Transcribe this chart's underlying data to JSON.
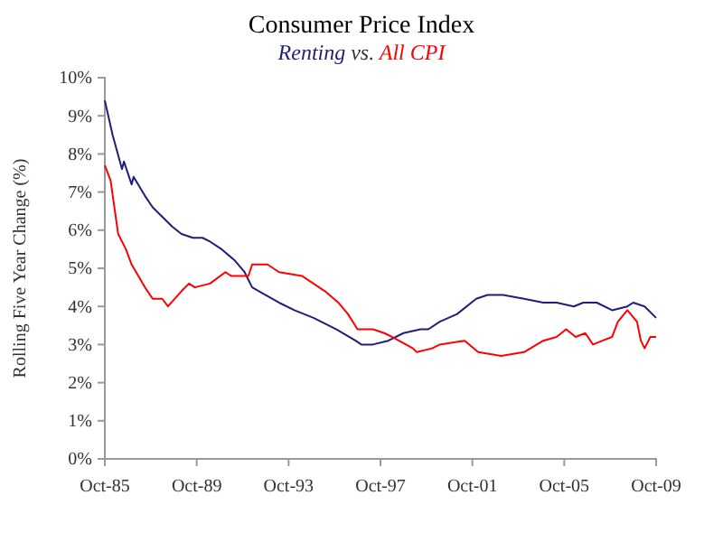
{
  "chart_data": {
    "type": "line",
    "title": "Consumer Price Index",
    "subtitle": "vs.",
    "ylabel": "Rolling Five Year Change (%)",
    "legend": "top",
    "marker": "none",
    "line_style": "solid",
    "grid": false,
    "xlim": [
      "1985-10",
      "2009-10"
    ],
    "xticks": [
      {
        "value": "1985-10",
        "label": "Oct-85"
      },
      {
        "value": "1989-10",
        "label": "Oct-89"
      },
      {
        "value": "1993-10",
        "label": "Oct-93"
      },
      {
        "value": "1997-10",
        "label": "Oct-97"
      },
      {
        "value": "2001-10",
        "label": "Oct-01"
      },
      {
        "value": "2005-10",
        "label": "Oct-05"
      },
      {
        "value": "2009-10",
        "label": "Oct-09"
      }
    ],
    "ylim": [
      0,
      10
    ],
    "yticks": [
      {
        "value": 0,
        "label": "0%"
      },
      {
        "value": 1,
        "label": "1%"
      },
      {
        "value": 2,
        "label": "2%"
      },
      {
        "value": 3,
        "label": "3%"
      },
      {
        "value": 4,
        "label": "4%"
      },
      {
        "value": 5,
        "label": "5%"
      },
      {
        "value": 6,
        "label": "6%"
      },
      {
        "value": 7,
        "label": "7%"
      },
      {
        "value": 8,
        "label": "8%"
      },
      {
        "value": 9,
        "label": "9%"
      },
      {
        "value": 10,
        "label": "10%"
      }
    ],
    "series": [
      {
        "name": "Renting",
        "color": "#1f1f7a",
        "x": [
          "1985-10",
          "1986-02",
          "1986-07",
          "1986-08",
          "1986-12",
          "1987-01",
          "1987-07",
          "1987-11",
          "1988-09",
          "1989-02",
          "1989-08",
          "1990-01",
          "1990-05",
          "1990-11",
          "1991-06",
          "1991-11",
          "1992-03",
          "1992-10",
          "1993-05",
          "1994-01",
          "1994-11",
          "1995-11",
          "1996-09",
          "1996-12",
          "1997-06",
          "1998-02",
          "1998-10",
          "1999-07",
          "1999-11",
          "2000-05",
          "2001-02",
          "2001-12",
          "2002-06",
          "2003-02",
          "2004-01",
          "2004-11",
          "2005-06",
          "2006-03",
          "2006-08",
          "2007-03",
          "2007-11",
          "2008-07",
          "2008-10",
          "2009-04",
          "2009-10"
        ],
        "values": [
          9.4,
          8.5,
          7.6,
          7.8,
          7.2,
          7.4,
          6.9,
          6.6,
          6.1,
          5.9,
          5.8,
          5.8,
          5.7,
          5.5,
          5.2,
          4.9,
          4.5,
          4.3,
          4.1,
          3.9,
          3.7,
          3.4,
          3.1,
          3.0,
          3.0,
          3.1,
          3.3,
          3.4,
          3.4,
          3.6,
          3.8,
          4.2,
          4.3,
          4.3,
          4.2,
          4.1,
          4.1,
          4.0,
          4.1,
          4.1,
          3.9,
          4.0,
          4.1,
          4.0,
          3.7
        ]
      },
      {
        "name": "All CPI",
        "color": "#ff0000",
        "x": [
          "1985-10",
          "1986-01",
          "1986-05",
          "1986-09",
          "1986-12",
          "1987-07",
          "1987-11",
          "1988-04",
          "1988-07",
          "1989-02",
          "1989-06",
          "1989-09",
          "1990-05",
          "1991-01",
          "1991-04",
          "1992-01",
          "1992-03",
          "1992-11",
          "1993-05",
          "1994-05",
          "1995-05",
          "1995-12",
          "1996-05",
          "1996-10",
          "1997-06",
          "1997-12",
          "1998-04",
          "1999-03",
          "1999-05",
          "2000-01",
          "2000-05",
          "2001-06",
          "2002-01",
          "2003-01",
          "2004-01",
          "2004-11",
          "2005-06",
          "2005-11",
          "2006-04",
          "2006-09",
          "2007-01",
          "2007-06",
          "2007-11",
          "2008-02",
          "2008-07",
          "2008-12",
          "2009-02",
          "2009-04",
          "2009-07",
          "2009-10"
        ],
        "values": [
          7.7,
          7.3,
          5.9,
          5.5,
          5.1,
          4.5,
          4.2,
          4.2,
          4.0,
          4.4,
          4.6,
          4.5,
          4.6,
          4.9,
          4.8,
          4.8,
          5.1,
          5.1,
          4.9,
          4.8,
          4.4,
          4.1,
          3.8,
          3.4,
          3.4,
          3.3,
          3.2,
          2.9,
          2.8,
          2.9,
          3.0,
          3.1,
          2.8,
          2.7,
          2.8,
          3.1,
          3.2,
          3.4,
          3.2,
          3.3,
          3.0,
          3.1,
          3.2,
          3.6,
          3.9,
          3.6,
          3.1,
          2.9,
          3.2,
          3.2
        ]
      }
    ]
  }
}
